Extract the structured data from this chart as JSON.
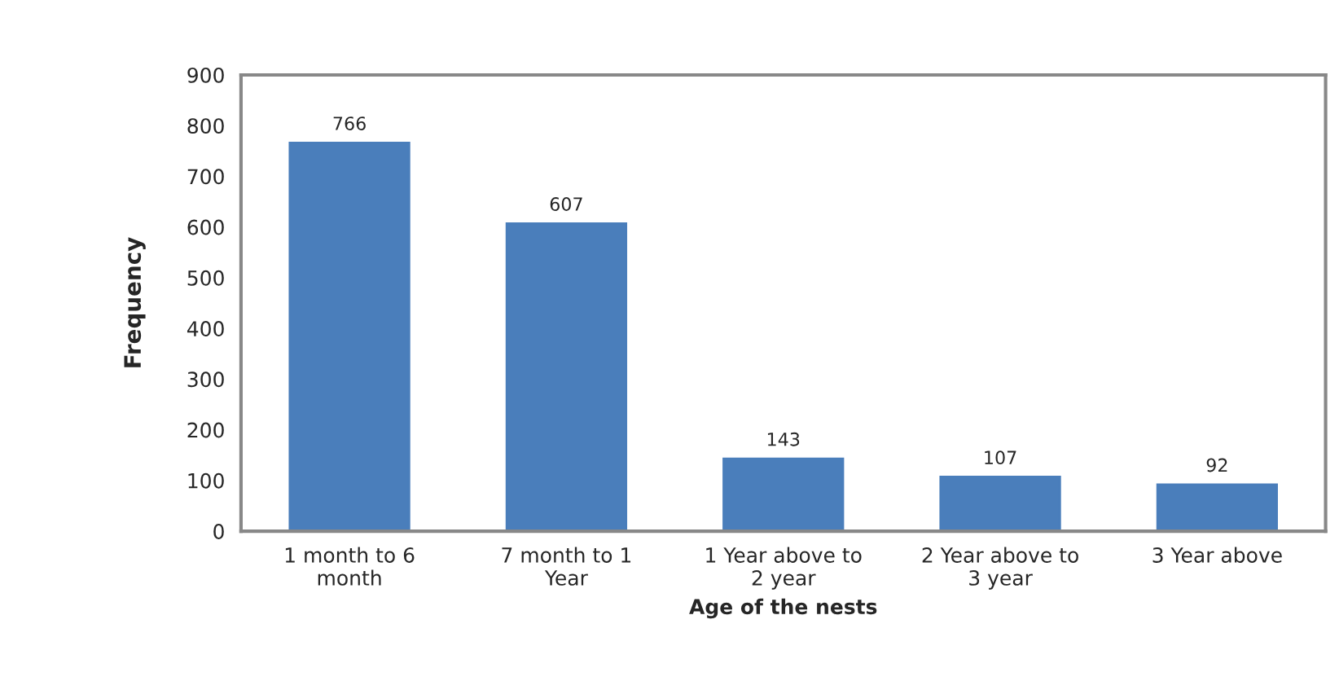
{
  "chart_data": {
    "type": "bar",
    "xlabel": "Age of the nests",
    "ylabel": "Frequency",
    "categories": [
      "1 month to 6\nmonth",
      "7 month to 1\nYear",
      "1 Year above to\n2 year",
      "2 Year above to\n3 year",
      "3 Year above"
    ],
    "values": [
      766,
      607,
      143,
      107,
      92
    ],
    "color": "#4a7ebb",
    "ylim": [
      0,
      900
    ],
    "yticks": [
      0,
      100,
      200,
      300,
      400,
      500,
      600,
      700,
      800,
      900
    ],
    "data_labels": true,
    "grid": false,
    "legend": false
  }
}
